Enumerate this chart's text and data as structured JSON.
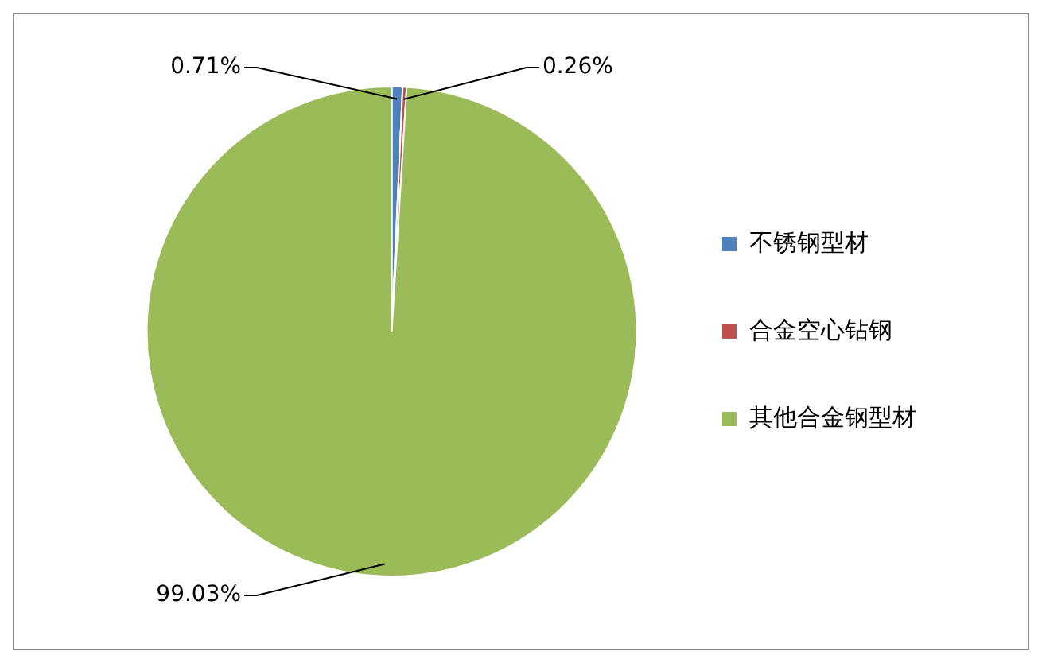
{
  "chart_data": {
    "type": "pie",
    "categories": [
      "不锈钢型材",
      "合金空心钻钢",
      "其他合金钢型材"
    ],
    "values": [
      0.71,
      0.26,
      99.03
    ],
    "colors": [
      "#4f81bd",
      "#c0504d",
      "#9bbb59"
    ],
    "value_labels": [
      "0.71%",
      "0.26%",
      "99.03%"
    ],
    "legend": "right"
  }
}
